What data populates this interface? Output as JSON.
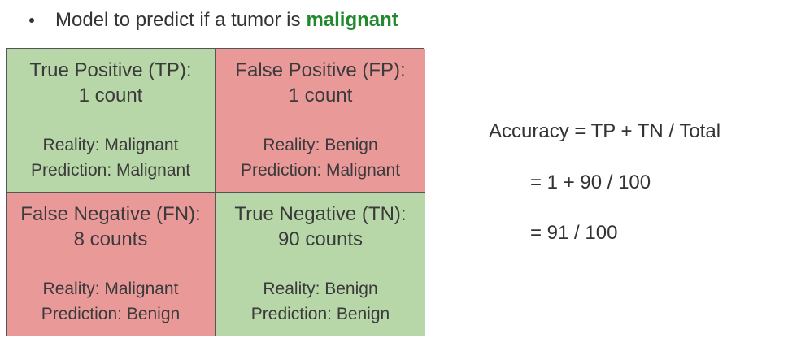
{
  "bullet": {
    "text": "Model to predict if a tumor is",
    "emphasis": "malignant"
  },
  "matrix": {
    "tp": {
      "title": "True Positive (TP):",
      "count": "1 count",
      "reality": "Reality: Malignant",
      "prediction": "Prediction: Malignant"
    },
    "fp": {
      "title": "False Positive (FP):",
      "count": "1 count",
      "reality": "Reality: Benign",
      "prediction": "Prediction: Malignant"
    },
    "fn": {
      "title": "False Negative (FN):",
      "count": "8 counts",
      "reality": "Reality: Malignant",
      "prediction": "Prediction: Benign"
    },
    "tn": {
      "title": "True Negative (TN):",
      "count": "90 counts",
      "reality": "Reality: Benign",
      "prediction": "Prediction: Benign"
    }
  },
  "accuracy": {
    "line1": "Accuracy = TP + TN / Total",
    "line2": "= 1 + 90 / 100",
    "line3": "= 91 / 100"
  },
  "colors": {
    "correct": "#b7d7a8",
    "incorrect": "#ea9999",
    "emphasis": "#23892f"
  }
}
